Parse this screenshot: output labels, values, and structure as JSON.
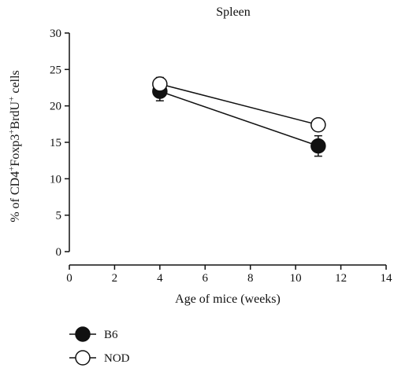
{
  "chart_data": {
    "type": "line",
    "title": "Spleen",
    "xlabel": "Age of mice (weeks)",
    "ylabel": "% of CD4⁺Foxp3⁺BrdU⁺ cells",
    "xlim": [
      0,
      14
    ],
    "ylim": [
      0,
      30
    ],
    "x_ticks": [
      0,
      2,
      4,
      6,
      8,
      10,
      12,
      14
    ],
    "y_ticks": [
      0,
      5,
      10,
      15,
      20,
      25,
      30
    ],
    "grid": false,
    "legend_position": "bottom-left",
    "series": [
      {
        "name": "B6",
        "marker": "filled-circle",
        "color": "#111111",
        "points": [
          {
            "x": 4,
            "y": 22.0,
            "err": 1.3
          },
          {
            "x": 11,
            "y": 14.5,
            "err": 1.4
          }
        ]
      },
      {
        "name": "NOD",
        "marker": "open-circle",
        "color": "#111111",
        "points": [
          {
            "x": 4,
            "y": 23.0,
            "err": 0.9
          },
          {
            "x": 11,
            "y": 17.4,
            "err": 0.6
          }
        ]
      }
    ]
  }
}
